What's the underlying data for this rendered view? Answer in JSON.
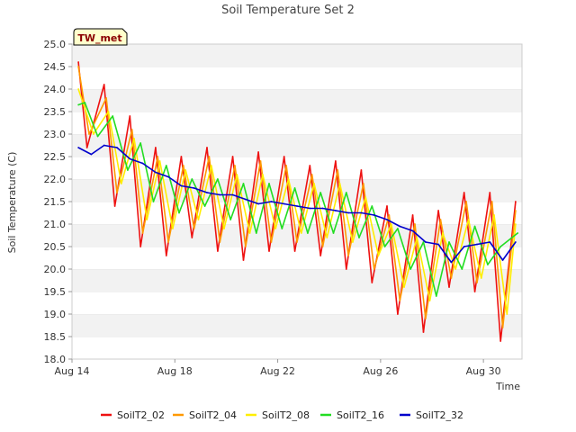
{
  "chart_data": {
    "type": "line",
    "title": "Soil Temperature Set 2",
    "xlabel": "Time",
    "ylabel": "Soil Temperature (C)",
    "badge": "TW_met",
    "xlim": [
      "2023-08-14",
      "2023-08-31T12:00"
    ],
    "ylim": [
      18.0,
      25.0
    ],
    "x_ticks": [
      {
        "date": "2023-08-14",
        "label": "Aug 14"
      },
      {
        "date": "2023-08-18",
        "label": "Aug 18"
      },
      {
        "date": "2023-08-22",
        "label": "Aug 22"
      },
      {
        "date": "2023-08-26",
        "label": "Aug 26"
      },
      {
        "date": "2023-08-30",
        "label": "Aug 30"
      }
    ],
    "y_ticks": [
      "18.0",
      "18.5",
      "19.0",
      "19.5",
      "20.0",
      "20.5",
      "21.0",
      "21.5",
      "22.0",
      "22.5",
      "23.0",
      "23.5",
      "24.0",
      "24.5",
      "25.0"
    ],
    "grid": "horizontal bands",
    "legend_position": "bottom",
    "series": [
      {
        "name": "SoilT2_02",
        "color": "#ee1111",
        "x": [
          "2023-08-14T06:00",
          "2023-08-14T14:00",
          "2023-08-15T06:00",
          "2023-08-15T16:00",
          "2023-08-16T06:00",
          "2023-08-16T16:00",
          "2023-08-17T06:00",
          "2023-08-17T16:00",
          "2023-08-18T06:00",
          "2023-08-18T16:00",
          "2023-08-19T06:00",
          "2023-08-19T16:00",
          "2023-08-20T06:00",
          "2023-08-20T16:00",
          "2023-08-21T06:00",
          "2023-08-21T16:00",
          "2023-08-22T06:00",
          "2023-08-22T16:00",
          "2023-08-23T06:00",
          "2023-08-23T16:00",
          "2023-08-24T06:00",
          "2023-08-24T16:00",
          "2023-08-25T06:00",
          "2023-08-25T16:00",
          "2023-08-26T06:00",
          "2023-08-26T16:00",
          "2023-08-27T06:00",
          "2023-08-27T16:00",
          "2023-08-28T06:00",
          "2023-08-28T16:00",
          "2023-08-29T06:00",
          "2023-08-29T16:00",
          "2023-08-30T06:00",
          "2023-08-30T16:00",
          "2023-08-31T06:00"
        ],
        "values": [
          24.6,
          22.7,
          24.1,
          21.4,
          23.4,
          20.5,
          22.7,
          20.3,
          22.5,
          20.7,
          22.7,
          20.4,
          22.5,
          20.2,
          22.6,
          20.4,
          22.5,
          20.4,
          22.3,
          20.3,
          22.4,
          20.0,
          22.2,
          19.7,
          21.4,
          19.0,
          21.2,
          18.6,
          21.3,
          19.6,
          21.7,
          19.5,
          21.7,
          18.4,
          21.5
        ]
      },
      {
        "name": "SoilT2_04",
        "color": "#ff9900",
        "x": [
          "2023-08-14T06:00",
          "2023-08-14T16:00",
          "2023-08-15T08:00",
          "2023-08-15T18:00",
          "2023-08-16T08:00",
          "2023-08-16T18:00",
          "2023-08-17T08:00",
          "2023-08-17T18:00",
          "2023-08-18T08:00",
          "2023-08-18T18:00",
          "2023-08-19T08:00",
          "2023-08-19T18:00",
          "2023-08-20T08:00",
          "2023-08-20T18:00",
          "2023-08-21T08:00",
          "2023-08-21T18:00",
          "2023-08-22T08:00",
          "2023-08-22T18:00",
          "2023-08-23T08:00",
          "2023-08-23T18:00",
          "2023-08-24T08:00",
          "2023-08-24T18:00",
          "2023-08-25T08:00",
          "2023-08-25T18:00",
          "2023-08-26T08:00",
          "2023-08-26T18:00",
          "2023-08-27T08:00",
          "2023-08-27T18:00",
          "2023-08-28T08:00",
          "2023-08-28T18:00",
          "2023-08-29T08:00",
          "2023-08-29T18:00",
          "2023-08-30T08:00",
          "2023-08-30T18:00",
          "2023-08-31T06:00"
        ],
        "values": [
          24.5,
          23.0,
          23.8,
          21.7,
          23.1,
          20.8,
          22.5,
          20.6,
          22.3,
          20.9,
          22.5,
          20.6,
          22.3,
          20.5,
          22.4,
          20.6,
          22.3,
          20.6,
          22.1,
          20.5,
          22.2,
          20.3,
          21.9,
          20.0,
          21.2,
          19.3,
          21.0,
          18.9,
          21.1,
          19.8,
          21.5,
          19.7,
          21.5,
          18.7,
          21.3
        ]
      },
      {
        "name": "SoilT2_08",
        "color": "#ffee00",
        "x": [
          "2023-08-14T06:00",
          "2023-08-14T20:00",
          "2023-08-15T10:00",
          "2023-08-15T22:00",
          "2023-08-16T10:00",
          "2023-08-16T22:00",
          "2023-08-17T10:00",
          "2023-08-17T22:00",
          "2023-08-18T10:00",
          "2023-08-18T22:00",
          "2023-08-19T10:00",
          "2023-08-19T22:00",
          "2023-08-20T10:00",
          "2023-08-20T22:00",
          "2023-08-21T10:00",
          "2023-08-21T22:00",
          "2023-08-22T10:00",
          "2023-08-22T22:00",
          "2023-08-23T10:00",
          "2023-08-23T22:00",
          "2023-08-24T10:00",
          "2023-08-24T22:00",
          "2023-08-25T10:00",
          "2023-08-25T22:00",
          "2023-08-26T10:00",
          "2023-08-26T22:00",
          "2023-08-27T10:00",
          "2023-08-27T22:00",
          "2023-08-28T10:00",
          "2023-08-28T22:00",
          "2023-08-29T10:00",
          "2023-08-29T22:00",
          "2023-08-30T10:00",
          "2023-08-30T22:00",
          "2023-08-31T06:00"
        ],
        "values": [
          24.0,
          23.0,
          23.5,
          21.9,
          22.9,
          21.1,
          22.4,
          20.9,
          22.2,
          21.1,
          22.3,
          20.9,
          22.1,
          20.8,
          22.1,
          20.9,
          22.0,
          20.8,
          21.9,
          20.7,
          21.9,
          20.6,
          21.6,
          20.3,
          21.0,
          19.6,
          20.7,
          19.3,
          20.8,
          20.0,
          21.1,
          19.8,
          21.2,
          19.0,
          21.0
        ]
      },
      {
        "name": "SoilT2_16",
        "color": "#22dd22",
        "x": [
          "2023-08-14T06:00",
          "2023-08-14T12:00",
          "2023-08-15T00:00",
          "2023-08-15T14:00",
          "2023-08-16T04:00",
          "2023-08-16T16:00",
          "2023-08-17T04:00",
          "2023-08-17T16:00",
          "2023-08-18T04:00",
          "2023-08-18T16:00",
          "2023-08-19T04:00",
          "2023-08-19T16:00",
          "2023-08-20T04:00",
          "2023-08-20T16:00",
          "2023-08-21T04:00",
          "2023-08-21T16:00",
          "2023-08-22T04:00",
          "2023-08-22T16:00",
          "2023-08-23T04:00",
          "2023-08-23T16:00",
          "2023-08-24T04:00",
          "2023-08-24T16:00",
          "2023-08-25T04:00",
          "2023-08-25T16:00",
          "2023-08-26T04:00",
          "2023-08-26T16:00",
          "2023-08-27T04:00",
          "2023-08-27T16:00",
          "2023-08-28T04:00",
          "2023-08-28T16:00",
          "2023-08-29T04:00",
          "2023-08-29T16:00",
          "2023-08-30T04:00",
          "2023-08-30T16:00",
          "2023-08-31T08:00"
        ],
        "values": [
          23.65,
          23.7,
          22.95,
          23.4,
          22.2,
          22.8,
          21.5,
          22.3,
          21.25,
          22.0,
          21.4,
          22.0,
          21.1,
          21.9,
          20.8,
          21.9,
          20.9,
          21.8,
          20.8,
          21.7,
          20.8,
          21.7,
          20.7,
          21.4,
          20.5,
          20.9,
          20.0,
          20.6,
          19.4,
          20.6,
          20.0,
          20.95,
          20.1,
          20.5,
          20.8
        ]
      },
      {
        "name": "SoilT2_32",
        "color": "#0000cc",
        "x": [
          "2023-08-14T06:00",
          "2023-08-14T18:00",
          "2023-08-15T06:00",
          "2023-08-15T18:00",
          "2023-08-16T06:00",
          "2023-08-16T18:00",
          "2023-08-17T06:00",
          "2023-08-17T18:00",
          "2023-08-18T06:00",
          "2023-08-18T18:00",
          "2023-08-19T06:00",
          "2023-08-19T18:00",
          "2023-08-20T06:00",
          "2023-08-20T18:00",
          "2023-08-21T06:00",
          "2023-08-21T18:00",
          "2023-08-22T06:00",
          "2023-08-22T18:00",
          "2023-08-23T06:00",
          "2023-08-23T18:00",
          "2023-08-24T06:00",
          "2023-08-24T18:00",
          "2023-08-25T06:00",
          "2023-08-25T18:00",
          "2023-08-26T06:00",
          "2023-08-26T18:00",
          "2023-08-27T06:00",
          "2023-08-27T18:00",
          "2023-08-28T06:00",
          "2023-08-28T18:00",
          "2023-08-29T06:00",
          "2023-08-29T18:00",
          "2023-08-30T06:00",
          "2023-08-30T18:00",
          "2023-08-31T06:00"
        ],
        "values": [
          22.7,
          22.55,
          22.75,
          22.7,
          22.45,
          22.35,
          22.15,
          22.05,
          21.85,
          21.8,
          21.7,
          21.65,
          21.65,
          21.55,
          21.45,
          21.5,
          21.45,
          21.4,
          21.35,
          21.35,
          21.3,
          21.25,
          21.25,
          21.2,
          21.1,
          20.95,
          20.85,
          20.6,
          20.55,
          20.15,
          20.5,
          20.55,
          20.6,
          20.2,
          20.6
        ]
      }
    ]
  }
}
